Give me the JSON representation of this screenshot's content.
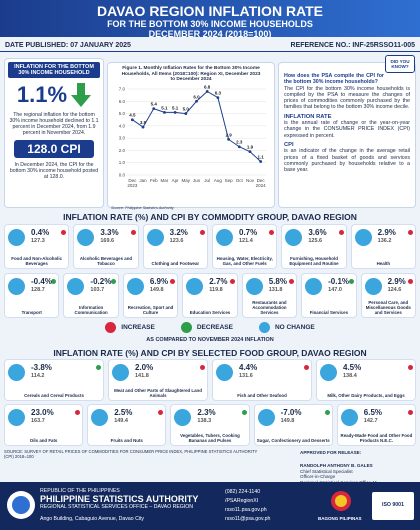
{
  "header": {
    "title": "DAVAO REGION INFLATION RATE",
    "subtitle": "FOR THE BOTTOM 30% INCOME HOUSEHOLDS",
    "period": "DECEMBER 2024 (2018=100)",
    "date_published": "DATE PUBLISHED: 07 JANUARY 2025",
    "reference_no": "REFERENCE NO.: INF-25RSSO11-005"
  },
  "highlight": {
    "label": "INFLATION FOR THE BOTTOM 30% INCOME HOUSEHOLD",
    "inflation": "1.1%",
    "inflation_text": "The regional inflation for the bottom 30% income household declined to 1.1 percent in December 2024, from 1.9 percent in November 2024.",
    "cpi_value": "128.0",
    "cpi_unit": "CPI",
    "cpi_text": "In December 2024, the CPI for the bottom 30% income household posted at 128.0."
  },
  "chart_data": {
    "type": "line",
    "title": "Figure 1. Monthly Inflation Rates for the Bottom 30% Income Households, All Items (2018=100): Region XI, December 2023 to December 2024",
    "categories": [
      "Dec 2023",
      "Jan",
      "Feb",
      "Mar",
      "Apr",
      "May",
      "Jun",
      "Jul",
      "Aug",
      "Sep",
      "Oct",
      "Nov",
      "Dec 2024"
    ],
    "values": [
      4.5,
      3.9,
      5.4,
      5.1,
      5.1,
      5.0,
      6.0,
      6.8,
      6.3,
      2.9,
      2.3,
      1.9,
      1.1
    ],
    "value_labels": [
      "4.5",
      "3.9",
      "5.4",
      "5.1",
      "5.1",
      "5.0",
      "6.0",
      "6.8",
      "6.3",
      "2.9",
      "2.3",
      "1.9",
      "1.1"
    ],
    "color": "#1f3f8f",
    "ylim": [
      0,
      7
    ],
    "yticks": [
      {
        "value": 0,
        "label": "0.0"
      },
      {
        "value": 1,
        "label": "1.0"
      },
      {
        "value": 2,
        "label": "2.0"
      },
      {
        "value": 3,
        "label": "3.0"
      },
      {
        "value": 4,
        "label": "4.0"
      },
      {
        "value": 5,
        "label": "5.0"
      },
      {
        "value": 6,
        "label": "6.0"
      },
      {
        "value": 7,
        "label": "7.0"
      }
    ],
    "grid": true,
    "source": "Source: Philippine Statistics Authority"
  },
  "did_you_know": {
    "badge": "DID YOU KNOW?",
    "question": "How does the PSA compile the CPI for the bottom 30% income households?",
    "answer": "The CPI for the bottom 30% income households is compiled by the PSA to measure the changes of prices of commodities commonly purchased by the families that belong to the bottom 30% income decile.",
    "term1": "INFLATION RATE",
    "def1": "is the annual rate of change or the year-on-year change in the CONSUMER PRICE INDEX (CPI) expressed in percent.",
    "term2": "CPI",
    "def2": "is an indicator of the change in the average retail prices of a fixed basket of goods and services commonly purchased by households relative to a base year."
  },
  "commodity": {
    "title": "INFLATION RATE (%) AND CPI BY COMMODITY GROUP, DAVAO REGION",
    "items": [
      {
        "name": "Food and Non-Alcoholic Beverages",
        "rate": "0.4%",
        "cpi": "127.3",
        "color": "#d7263d"
      },
      {
        "name": "Alcoholic Beverages and Tobacco",
        "rate": "3.3%",
        "cpi": "169.6",
        "color": "#d7263d"
      },
      {
        "name": "Clothing and Footwear",
        "rate": "3.2%",
        "cpi": "123.6",
        "color": "#d7263d"
      },
      {
        "name": "Housing, Water, Electricity, Gas, and Other Fuels",
        "rate": "0.7%",
        "cpi": "121.4",
        "color": "#d7263d"
      },
      {
        "name": "Furnishing, Household Equipment and Routine",
        "rate": "3.6%",
        "cpi": "125.6",
        "color": "#d7263d"
      },
      {
        "name": "Health",
        "rate": "2.9%",
        "cpi": "136.2",
        "color": "#d7263d"
      },
      {
        "name": "Transport",
        "rate": "-0.4%",
        "cpi": "128.7",
        "color": "#2e9e4a"
      },
      {
        "name": "Information Communication",
        "rate": "-0.2%",
        "cpi": "103.7",
        "color": "#2e9e4a"
      },
      {
        "name": "Recreation, Sport and Culture",
        "rate": "6.9%",
        "cpi": "149.8",
        "color": "#d7263d"
      },
      {
        "name": "Education Services",
        "rate": "2.7%",
        "cpi": "119.8",
        "color": "#d7263d"
      },
      {
        "name": "Restaurants and Accommodation Services",
        "rate": "5.8%",
        "cpi": "131.8",
        "color": "#d7263d"
      },
      {
        "name": "Financial Services",
        "rate": "-0.1%",
        "cpi": "147.0",
        "color": "#2e9e4a"
      },
      {
        "name": "Personal Care, and Miscellaneous Goods and Services",
        "rate": "2.9%",
        "cpi": "124.6",
        "color": "#d7263d"
      }
    ]
  },
  "legend": {
    "items": [
      {
        "label": "INCREASE",
        "color": "#d7263d"
      },
      {
        "label": "DECREASE",
        "color": "#2e9e4a"
      },
      {
        "label": "NO CHANGE",
        "color": "#3aa6dd"
      }
    ],
    "note": "AS COMPARED TO NOVEMBER 2024 INFLATION"
  },
  "food": {
    "title": "INFLATION RATE (%) AND CPI BY SELECTED FOOD GROUP, DAVAO REGION",
    "items": [
      {
        "name": "Cereals and Cereal Products",
        "rate": "-3.8%",
        "cpi": "114.2",
        "color": "#2e9e4a"
      },
      {
        "name": "Meat and Other Parts of Slaughtered Land Animals",
        "rate": "2.0%",
        "cpi": "141.8",
        "color": "#d7263d"
      },
      {
        "name": "Fish and Other Seafood",
        "rate": "4.4%",
        "cpi": "131.6",
        "color": "#d7263d"
      },
      {
        "name": "Milk, Other Dairy Products, and Eggs",
        "rate": "4.5%",
        "cpi": "138.4",
        "color": "#d7263d"
      },
      {
        "name": "Oils and Fats",
        "rate": "23.0%",
        "cpi": "163.7",
        "color": "#d7263d"
      },
      {
        "name": "Fruits and Nuts",
        "rate": "2.5%",
        "cpi": "149.4",
        "color": "#d7263d"
      },
      {
        "name": "Vegetables, Tubers, Cooking Bananas and Pulses",
        "rate": "2.3%",
        "cpi": "138.3",
        "color": "#2e9e4a"
      },
      {
        "name": "Sugar, Confectionery and Desserts",
        "rate": "-7.0%",
        "cpi": "149.8",
        "color": "#2e9e4a"
      },
      {
        "name": "Ready-Made Food and Other Food Products N.E.C.",
        "rate": "6.5%",
        "cpi": "142.7",
        "color": "#d7263d"
      }
    ]
  },
  "source": "SOURCE: SURVEY OF RETAIL PRICES OF COMMODITIES FOR CONSUMER PRICE INDEX, PHILIPPINE STATISTICS AUTHORITY (CPI) 2018=100",
  "approval": {
    "label": "APPROVED FOR RELEASE:",
    "name": "RANDOLPH ANTHONY B. GALES",
    "position": "Chief Statistical Specialist",
    "role": "Officer-in-Charge",
    "office": "Regional Statistical Services Office 11"
  },
  "footer": {
    "republic": "REPUBLIC OF THE PHILIPPINES",
    "agency": "PHILIPPINE STATISTICS AUTHORITY",
    "office": "REGIONAL STATISTICAL SERVICES OFFICE – DAVAO REGION",
    "address": "Ango Building, Cabaguio Avenue, Davao City",
    "phone": "(082) 224-1140",
    "facebook": "/PSARegionXI",
    "website": "rsso11.psa.gov.ph",
    "email": "rsso11@psa.gov.ph",
    "bagong": "BAGONG PILIPINAS",
    "iso": "ISO 9001"
  }
}
